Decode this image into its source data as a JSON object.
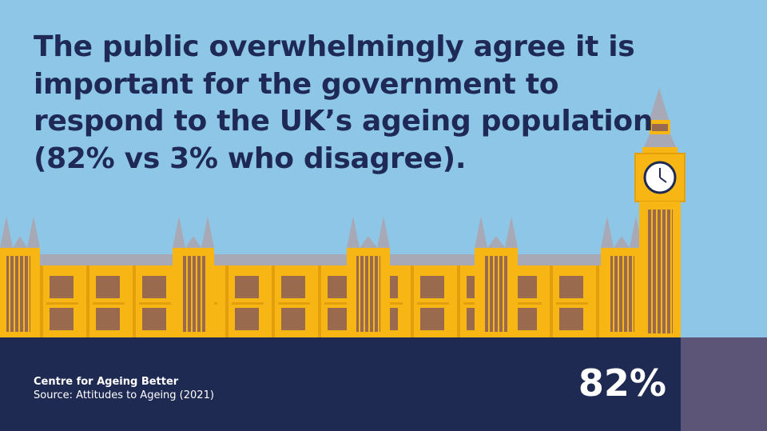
{
  "headline": {
    "lines": [
      "The public overwhelmingly agree it is",
      "important for the government to",
      "respond to the UK’s ageing population",
      "(82% vs 3% who disagree)."
    ]
  },
  "footer": {
    "organisation": "Centre for Ageing Better",
    "source": "Source: Attitudes to Ageing (2021)",
    "stat": "82%"
  }
}
